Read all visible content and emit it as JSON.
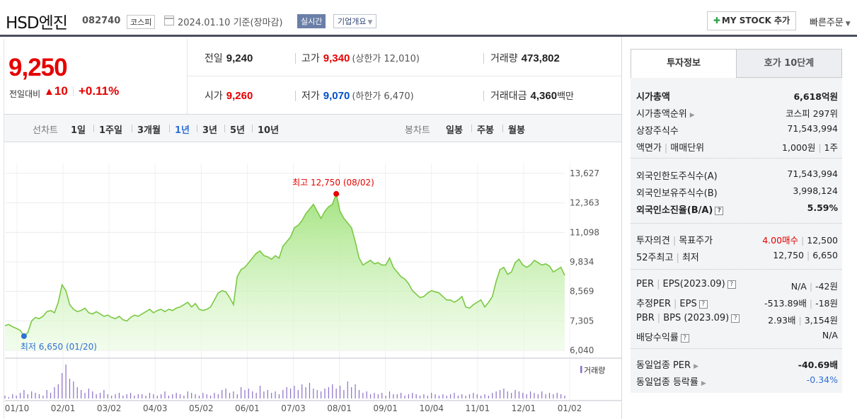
{
  "header": {
    "stock_name": "HSD엔진",
    "stock_code": "082740",
    "market": "코스피",
    "date_text": "2024.01.10  기준(장마감)",
    "realtime_label": "실시간",
    "overview_label": "기업개요",
    "mystock_label": "MY STOCK 추가",
    "quick_order_label": "빠른주문"
  },
  "price": {
    "current": "9,250",
    "change_label": "전일대비",
    "change_symbol": "▲",
    "change_amount": "10",
    "change_rate": "+0.11%"
  },
  "stats": {
    "prev_close_label": "전일",
    "prev_close": "9,240",
    "high_label": "고가",
    "high": "9,340",
    "upper_limit_text": "(상한가 12,010)",
    "volume_label": "거래량",
    "volume": "473,802",
    "open_label": "시가",
    "open": "9,260",
    "low_label": "저가",
    "low": "9,070",
    "lower_limit_text": "(하한가 6,470)",
    "amount_label": "거래대금",
    "amount": "4,360",
    "amount_unit": "백만"
  },
  "chart_tabs": {
    "line_label": "선차트",
    "periods": [
      "1일",
      "1주일",
      "3개월",
      "1년",
      "3년",
      "5년",
      "10년"
    ],
    "active_period": "1년",
    "candle_label": "봉차트",
    "candles": [
      "일봉",
      "주봉",
      "월봉"
    ]
  },
  "colors": {
    "up": "#e60000",
    "down": "#0050c8",
    "line": "#7ac943",
    "volume": "#8b6fc6"
  },
  "chart_data": {
    "type": "area",
    "y_ticks": [
      "13,627",
      "12,363",
      "11,098",
      "9,834",
      "8,569",
      "7,305",
      "6,040"
    ],
    "ylim": [
      6040,
      13627
    ],
    "x_ticks": [
      "01/10",
      "02/01",
      "03/02",
      "04/03",
      "05/02",
      "06/01",
      "07/03",
      "08/01",
      "09/01",
      "10/04",
      "11/01",
      "12/01",
      "01/02"
    ],
    "high_annotation": "최고 12,750 (08/02)",
    "low_annotation": "최저 6,650 (01/20)",
    "volume_legend": "거래량",
    "series": [
      {
        "values": [
          7100,
          7150,
          7050,
          6980,
          6900,
          6650,
          6800,
          7300,
          7450,
          7400,
          7500,
          7700,
          7750,
          7650,
          8100,
          8850,
          8600,
          8000,
          7800,
          7700,
          7750,
          7850,
          7650,
          7600,
          7700,
          7600,
          7500,
          7550,
          7450,
          7400,
          7500,
          7350,
          7300,
          7450,
          7550,
          7500,
          7600,
          7700,
          7800,
          7650,
          7750,
          7800,
          7700,
          7800,
          7750,
          7850,
          7900,
          8000,
          8100,
          7900,
          8050,
          7800,
          7750,
          7800,
          7900,
          8200,
          8500,
          8600,
          8550,
          8300,
          8000,
          9200,
          9500,
          9600,
          9800,
          10000,
          10200,
          10300,
          10100,
          10050,
          9950,
          10100,
          10000,
          10500,
          10700,
          10900,
          11300,
          11400,
          11600,
          11900,
          12100,
          12300,
          12000,
          11700,
          12000,
          12200,
          12300,
          12750,
          12000,
          11700,
          11500,
          11300,
          10700,
          10000,
          9700,
          9800,
          9900,
          9750,
          9800,
          9700,
          9700,
          10000,
          9600,
          9400,
          9200,
          9100,
          8900,
          8600,
          8450,
          8300,
          8350,
          8500,
          8600,
          8550,
          8500,
          8350,
          8200,
          8200,
          8100,
          8200,
          8350,
          7900,
          7850,
          8000,
          8100,
          8200,
          7900,
          8100,
          8350,
          9000,
          9500,
          9600,
          9300,
          9400,
          9800,
          9950,
          9700,
          9600,
          9700,
          9900,
          9800,
          9700,
          9750,
          9650,
          9400,
          9500,
          9600,
          9250
        ]
      }
    ],
    "volume": [
      2,
      1,
      3,
      2,
      4,
      6,
      3,
      5,
      4,
      3,
      2,
      6,
      4,
      8,
      10,
      18,
      24,
      14,
      12,
      8,
      6,
      4,
      7,
      5,
      3,
      4,
      6,
      3,
      2,
      3,
      4,
      2,
      3,
      4,
      2,
      3,
      3,
      2,
      4,
      3,
      2,
      3,
      5,
      2,
      3,
      4,
      3,
      2,
      5,
      4,
      3,
      2,
      4,
      3,
      2,
      4,
      3,
      6,
      7,
      4,
      5,
      3,
      8,
      6,
      7,
      5,
      4,
      9,
      5,
      6,
      4,
      5,
      3,
      6,
      8,
      7,
      9,
      6,
      10,
      8,
      11,
      7,
      6,
      5,
      7,
      8,
      10,
      7,
      9,
      6,
      12,
      8,
      10,
      6,
      4,
      5,
      3,
      4,
      3,
      4,
      2,
      5,
      3,
      3,
      4,
      2,
      3,
      4,
      3,
      2,
      3,
      2,
      4,
      3,
      2,
      3,
      2,
      3,
      4,
      2,
      3,
      2,
      3,
      4,
      3,
      2,
      3,
      2,
      4,
      5,
      6,
      7,
      5,
      4,
      6,
      5,
      4,
      3,
      5,
      4,
      3,
      5,
      3,
      4,
      3,
      4,
      3,
      2
    ]
  },
  "invest_panel": {
    "tab_info": "투자정보",
    "tab_hoga": "호가 10단계",
    "market_cap_label": "시가총액",
    "market_cap": "6,618억원",
    "market_cap_rank_label": "시가총액순위",
    "market_cap_rank": "코스피 297위",
    "shares_label": "상장주식수",
    "shares": "71,543,994",
    "par_label": "액면가",
    "trade_unit_label": "매매단위",
    "par": "1,000원",
    "trade_unit": "1주",
    "foreign_limit_label": "외국인한도주식수(A)",
    "foreign_limit": "71,543,994",
    "foreign_hold_label": "외국인보유주식수(B)",
    "foreign_hold": "3,998,124",
    "foreign_ratio_label": "외국인소진율(B/A)",
    "foreign_ratio": "5.59%",
    "opinion_label": "투자의견",
    "target_label": "목표주가",
    "opinion": "4.00매수",
    "target": "12,500",
    "w52_high_label": "52주최고",
    "w52_low_label": "최저",
    "w52_high": "12,750",
    "w52_low": "6,650",
    "per_label": "PER",
    "eps_label": "EPS(2023.09)",
    "per": "N/A",
    "eps": "-42원",
    "est_per_label": "추정PER",
    "est_eps_label": "EPS",
    "est_per": "-513.89배",
    "est_eps": "-18원",
    "pbr_label": "PBR",
    "bps_label": "BPS (2023.09)",
    "pbr": "2.93배",
    "bps": "3,154원",
    "dividend_label": "배당수익률",
    "dividend": "N/A",
    "sector_per_label": "동일업종 PER",
    "sector_per": "-40.69배",
    "sector_rate_label": "동일업종 등락률",
    "sector_rate": "-0.34%"
  }
}
